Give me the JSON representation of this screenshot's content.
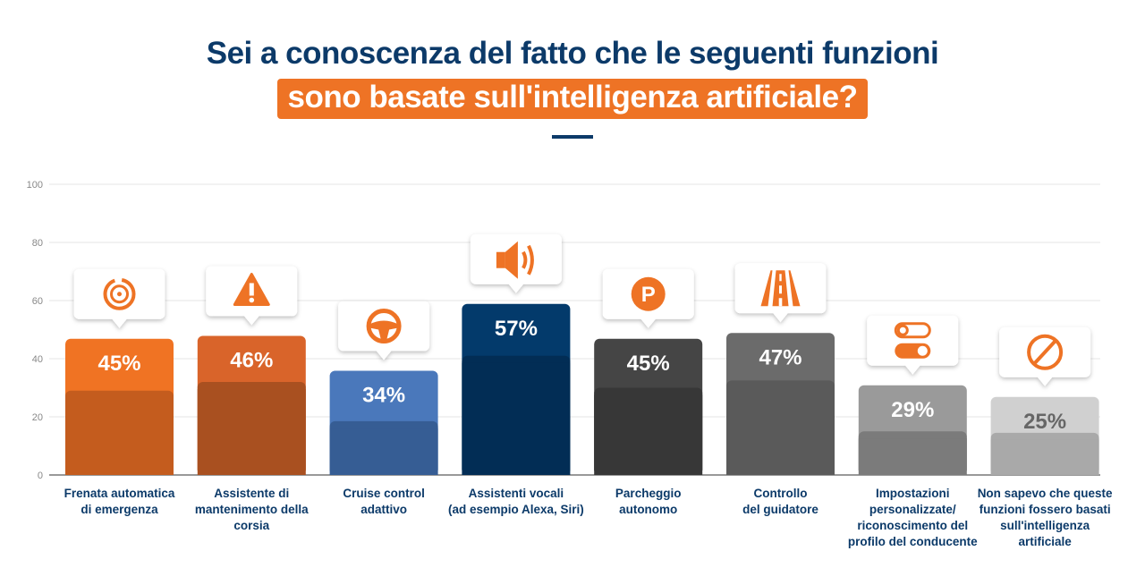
{
  "title": {
    "line1": "Sei a conoscenza del fatto che le seguenti funzioni",
    "line2": "sono basate sull'intelligenza artificiale?"
  },
  "colors": {
    "title": "#0c3a69",
    "accent": "#ee7325"
  },
  "chart_data": {
    "type": "bar",
    "title": "Sei a conoscenza del fatto che le seguenti funzioni sono basate sull'intelligenza artificiale?",
    "ylim": [
      0,
      100
    ],
    "yticks": [
      0,
      20,
      40,
      60,
      80,
      100
    ],
    "grid": true,
    "categories": [
      "Frenata automatica di emergenza",
      "Assistente di mantenimento della corsia",
      "Cruise control adattivo",
      "Assistenti vocali (ad esempio Alexa, Siri)",
      "Parcheggio autonomo",
      "Controllo del guidatore",
      "Impostazioni personalizzate/ riconoscimento del profilo del conducente",
      "Non sapevo che queste funzioni fossero basati sull'intelligenza artificiale"
    ],
    "values": [
      45,
      46,
      34,
      57,
      45,
      47,
      29,
      25
    ],
    "data_labels": [
      "45%",
      "46%",
      "34%",
      "57%",
      "45%",
      "47%",
      "29%",
      "25%"
    ],
    "icons": [
      "brake-disc-icon",
      "warning-icon",
      "steering-wheel-icon",
      "speaker-icon",
      "parking-icon",
      "road-icon",
      "toggle-icon",
      "prohibited-icon"
    ],
    "bar_colors": [
      "#f07323",
      "#d9642a",
      "#4a78bb",
      "#033a6b",
      "#454545",
      "#6b6b6b",
      "#9a9a9a",
      "#d0d0d0"
    ]
  },
  "xlabels": [
    [
      "Frenata automatica",
      "di emergenza"
    ],
    [
      "Assistente di",
      "mantenimento della",
      "corsia"
    ],
    [
      "Cruise control",
      "adattivo"
    ],
    [
      "Assistenti vocali",
      "(ad esempio Alexa, Siri)"
    ],
    [
      "Parcheggio",
      "autonomo"
    ],
    [
      "Controllo",
      "del guidatore"
    ],
    [
      "Impostazioni",
      "personalizzate/",
      "riconoscimento del",
      "profilo del conducente"
    ],
    [
      "Non sapevo che queste",
      "funzioni fossero basati",
      "sull'intelligenza",
      "artificiale"
    ]
  ]
}
